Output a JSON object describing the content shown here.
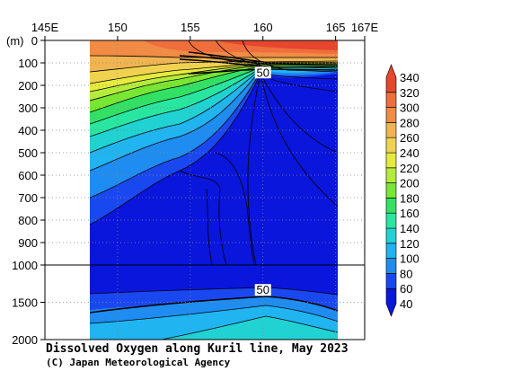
{
  "chart_data": {
    "type": "heatmap",
    "title": "Dissolved Oxygen along Kuril line, May 2023",
    "credit": "(C) Japan Meteorological Agency",
    "ylabel_unit": "(m)",
    "x_ticks": [
      {
        "lon": 145,
        "label": "145E"
      },
      {
        "lon": 150,
        "label": "150"
      },
      {
        "lon": 155,
        "label": "155"
      },
      {
        "lon": 160,
        "label": "160"
      },
      {
        "lon": 165,
        "label": "165"
      },
      {
        "lon": 167,
        "label": "167E"
      }
    ],
    "xlim": [
      145,
      167
    ],
    "data_lon_range": [
      148.2,
      165
    ],
    "y_upper_ticks": [
      {
        "depth": 0,
        "label": "0"
      },
      {
        "depth": 100,
        "label": "100"
      },
      {
        "depth": 200,
        "label": "200"
      },
      {
        "depth": 300,
        "label": "300"
      },
      {
        "depth": 400,
        "label": "400"
      },
      {
        "depth": 500,
        "label": "500"
      },
      {
        "depth": 600,
        "label": "600"
      },
      {
        "depth": 700,
        "label": "700"
      },
      {
        "depth": 800,
        "label": "800"
      },
      {
        "depth": 900,
        "label": "900"
      },
      {
        "depth": 1000,
        "label": "1000"
      }
    ],
    "y_lower_ticks": [
      {
        "depth": 1500,
        "label": "1500"
      },
      {
        "depth": 2000,
        "label": "2000"
      }
    ],
    "ylim": [
      0,
      2000
    ],
    "contour_labels": [
      {
        "lon": 160,
        "depth": 145,
        "text": "50"
      },
      {
        "lon": 160,
        "depth": 1340,
        "text": "50"
      }
    ],
    "colorbar": {
      "levels": [
        40,
        60,
        80,
        100,
        120,
        140,
        160,
        180,
        200,
        220,
        240,
        260,
        280,
        300,
        320,
        340
      ],
      "labels": [
        "40",
        "60",
        "80",
        "100",
        "120",
        "140",
        "160",
        "180",
        "200",
        "220",
        "240",
        "260",
        "280",
        "300",
        "320",
        "340"
      ],
      "colors": [
        "#0a16dc",
        "#1a48f0",
        "#1e8cf0",
        "#20b4f0",
        "#20d2d2",
        "#28e6a0",
        "#32e164",
        "#78e632",
        "#b4ec3c",
        "#e6ea3c",
        "#f0d250",
        "#f0b450",
        "#f08c46",
        "#f06e3c",
        "#e6462d"
      ]
    }
  }
}
